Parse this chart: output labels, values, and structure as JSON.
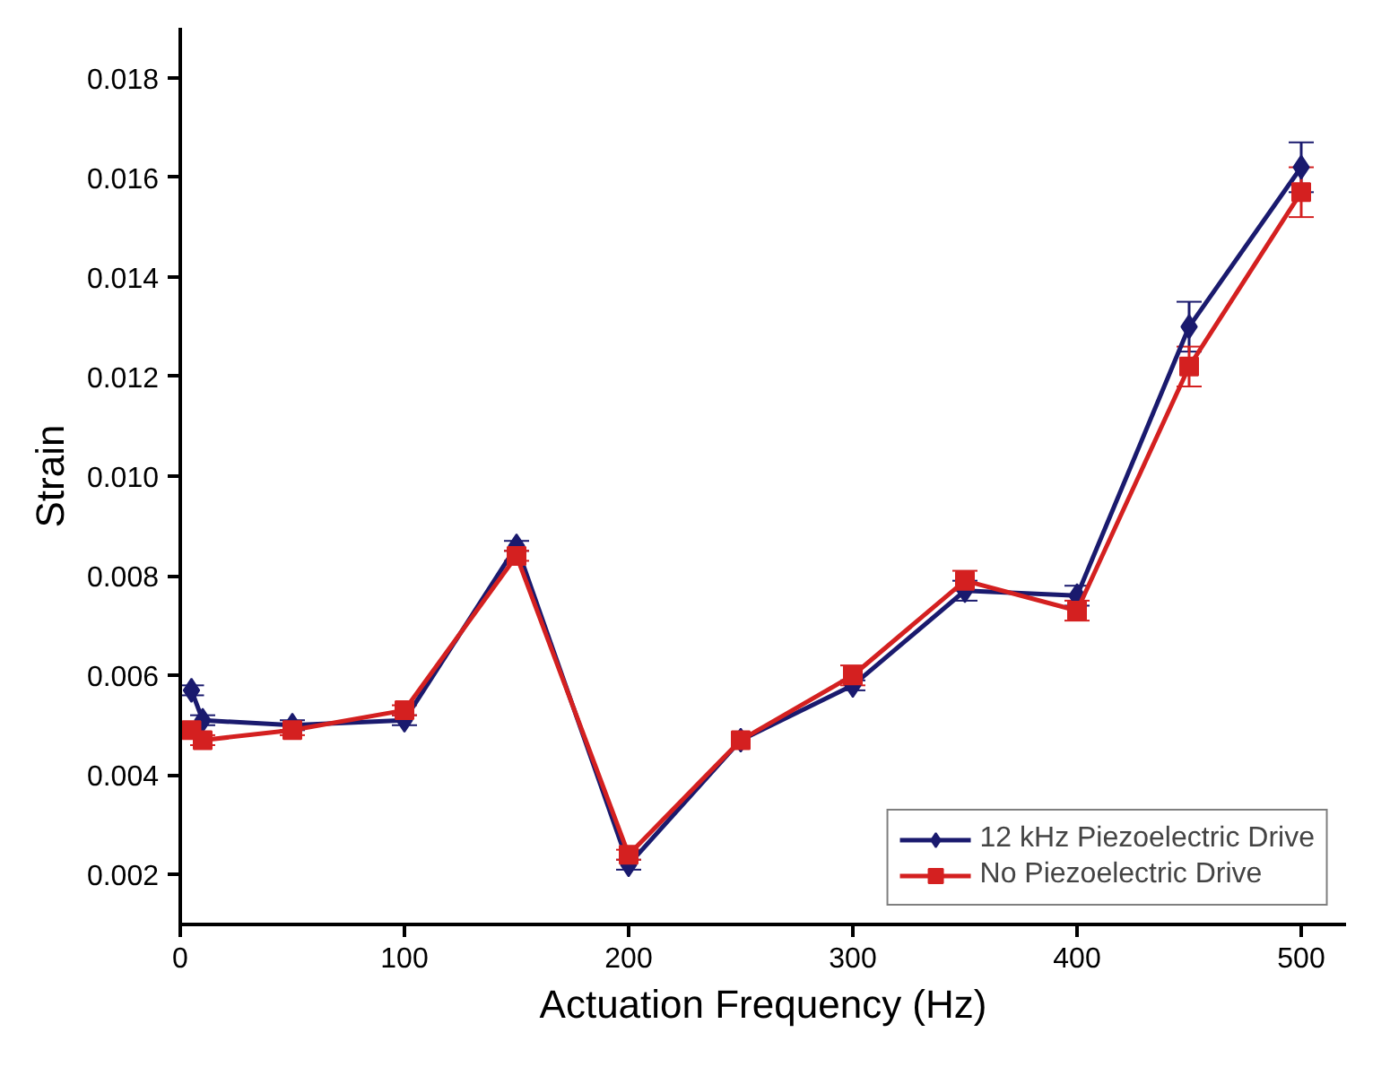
{
  "chart_data": {
    "type": "line",
    "xlabel": "Actuation Frequency (Hz)",
    "ylabel": "Strain",
    "x": [
      5,
      10,
      50,
      100,
      150,
      200,
      250,
      300,
      350,
      400,
      450,
      500
    ],
    "series": [
      {
        "name": "12 kHz Piezoelectric Drive",
        "color": "#1a1a6e",
        "marker": "diamond",
        "values": [
          0.0057,
          0.0051,
          0.005,
          0.0051,
          0.0086,
          0.0022,
          0.0047,
          0.0058,
          0.0077,
          0.0076,
          0.013,
          0.0162
        ],
        "errors": [
          0.0001,
          0.0001,
          0.0001,
          0.0001,
          0.0001,
          0.0001,
          null,
          0.0001,
          0.0002,
          0.0002,
          0.0005,
          0.0005
        ]
      },
      {
        "name": "No Piezoelectric Drive",
        "color": "#d42020",
        "marker": "square",
        "values": [
          0.0049,
          0.0047,
          0.0049,
          0.0053,
          0.0084,
          0.0024,
          0.0047,
          0.006,
          0.0079,
          0.0073,
          0.0122,
          0.0157
        ],
        "errors": [
          0.0001,
          0.0001,
          0.0001,
          0.0001,
          0.0001,
          0.0001,
          null,
          0.0002,
          0.0002,
          0.0002,
          0.0004,
          0.0005
        ]
      }
    ],
    "xlim": [
      0,
      520
    ],
    "xticks": [
      0,
      100,
      200,
      300,
      400,
      500
    ],
    "ylim": [
      0.001,
      0.019
    ],
    "yticks": [
      0.002,
      0.004,
      0.006,
      0.008,
      {
        "value": 0.01,
        "label": "0.010"
      },
      0.012,
      0.014,
      0.016,
      0.018
    ],
    "grid": false,
    "legend": "bottom right",
    "line_style": "solid"
  }
}
